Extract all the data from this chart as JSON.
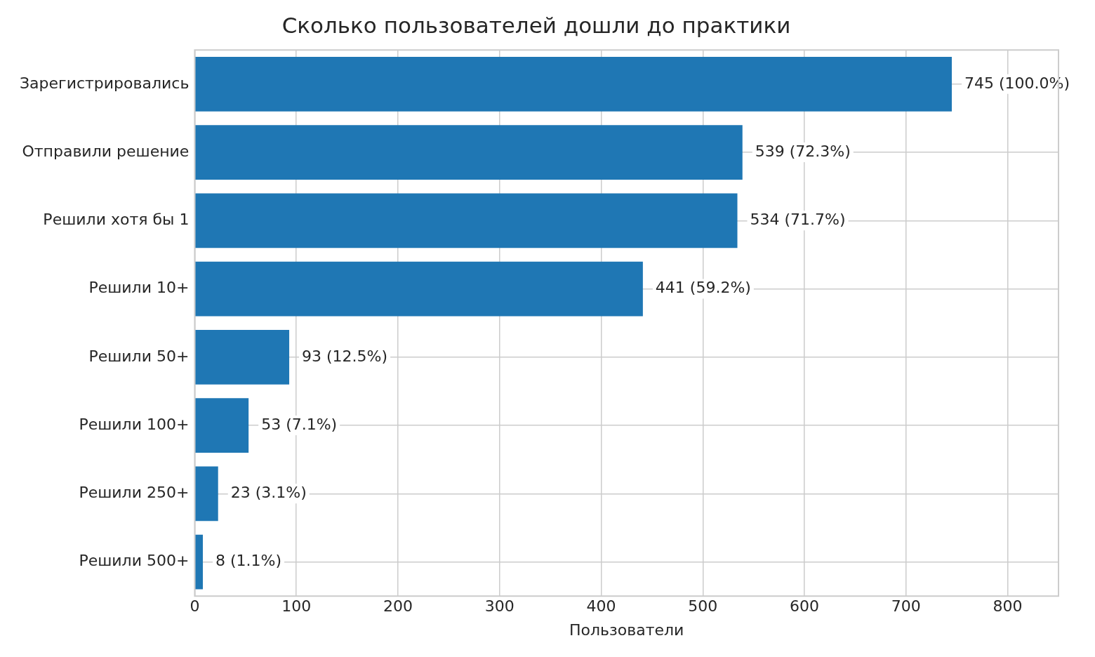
{
  "chart_data": {
    "type": "bar",
    "orientation": "horizontal",
    "title": "Сколько пользователей дошли до практики",
    "xlabel": "Пользователи",
    "categories": [
      "Зарегистрировались",
      "Отправили решение",
      "Решили хотя бы 1",
      "Решили 10+",
      "Решили 50+",
      "Решили 100+",
      "Решили 250+",
      "Решили 500+"
    ],
    "values": [
      745,
      539,
      534,
      441,
      93,
      53,
      23,
      8
    ],
    "value_labels": [
      "745 (100.0%)",
      "539 (72.3%)",
      "534 (71.7%)",
      "441 (59.2%)",
      "93 (12.5%)",
      "53 (7.1%)",
      "23 (3.1%)",
      "8 (1.1%)"
    ],
    "color": "#1f77b4",
    "xlim": [
      0,
      850
    ],
    "xticks": [
      0,
      100,
      200,
      300,
      400,
      500,
      600,
      700,
      800
    ],
    "grid": true
  }
}
